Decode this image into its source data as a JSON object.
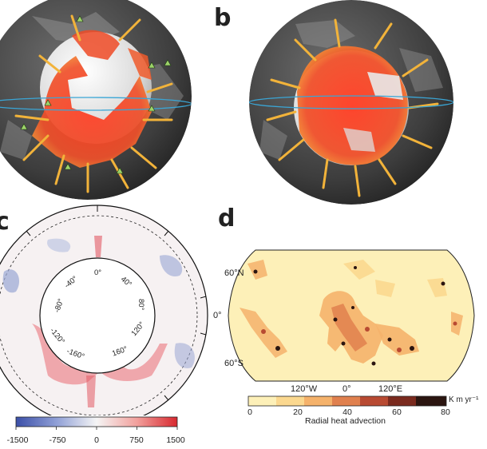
{
  "figure": {
    "panel_labels": {
      "a": "",
      "b": "b",
      "c": "c",
      "d": "d"
    },
    "panel_c": {
      "inner_ticks": [
        "0°",
        "40°",
        "80°",
        "120°",
        "160°",
        "-160°",
        "-120°",
        "-80°",
        "-40°"
      ],
      "colorbar": {
        "ticks": [
          "-1500",
          "-750",
          "0",
          "750",
          "1500"
        ],
        "colors": [
          "#3b4fa8",
          "#8f9fd6",
          "#f5f5f5",
          "#f2a09c",
          "#d7282f"
        ]
      }
    },
    "panel_d": {
      "lat_labels": [
        "60°N",
        "0°",
        "60°S"
      ],
      "lon_labels": [
        "120°W",
        "0°",
        "120°E"
      ],
      "colorbar": {
        "ticks": [
          "0",
          "20",
          "40",
          "60",
          "80"
        ],
        "unit": "K m yr⁻¹",
        "title": "Radial heat advection",
        "colors": [
          "#fdf0b8",
          "#fbd88f",
          "#f5b26b",
          "#e0804e",
          "#b84a32",
          "#7a2a1e",
          "#2b1510"
        ]
      }
    }
  }
}
